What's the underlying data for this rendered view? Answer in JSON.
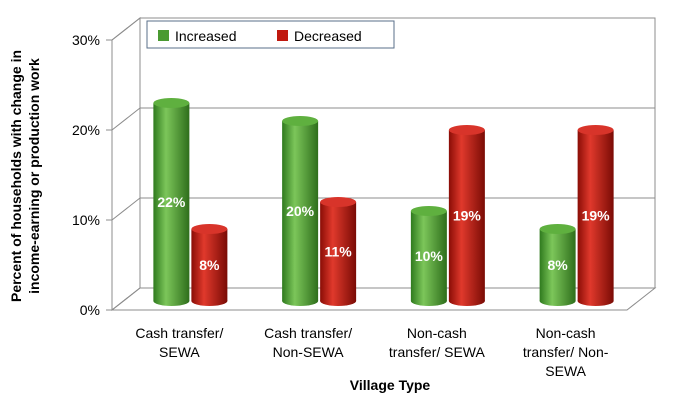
{
  "chart_data": {
    "type": "bar",
    "categories": [
      [
        "Cash transfer/",
        "SEWA"
      ],
      [
        "Cash transfer/",
        "Non-SEWA"
      ],
      [
        "Non-cash",
        "transfer/ SEWA"
      ],
      [
        "Non-cash",
        "transfer/ Non-",
        "SEWA"
      ]
    ],
    "series": [
      {
        "name": "Increased",
        "values": [
          22,
          20,
          10,
          8
        ],
        "labels": [
          "22%",
          "20%",
          "10%",
          "8%"
        ],
        "color": "#4a9a31"
      },
      {
        "name": "Decreased",
        "values": [
          8,
          11,
          19,
          19
        ],
        "labels": [
          "8%",
          "11%",
          "19%",
          "19%"
        ],
        "color": "#c0180f"
      }
    ],
    "title": "",
    "xlabel": "Village Type",
    "ylabel": [
      "Percent of households with change in",
      "income-earning or production work"
    ],
    "yticks": [
      "0%",
      "10%",
      "20%",
      "30%"
    ],
    "ylim": [
      0,
      30
    ],
    "grid": true,
    "legend": "top-left"
  }
}
